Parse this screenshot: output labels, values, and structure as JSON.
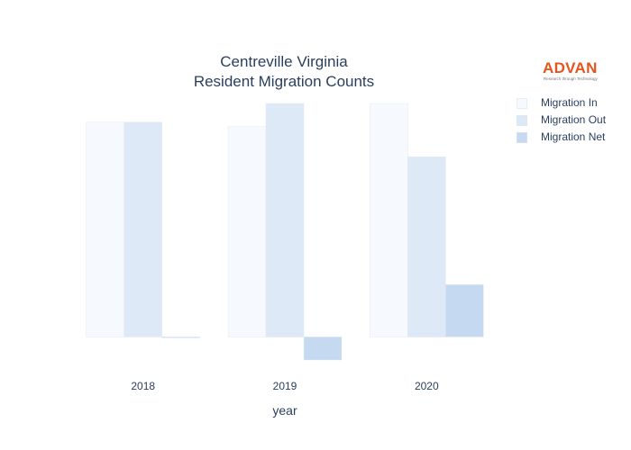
{
  "logo": {
    "name": "ADVAN",
    "tagline": "Research through Technology"
  },
  "chart_data": {
    "type": "bar",
    "title": "Centreville Virginia Resident Migration Counts",
    "title_lines": [
      "Centreville Virginia",
      "Resident Migration Counts"
    ],
    "xlabel": "year",
    "ylabel": "",
    "categories": [
      "2018",
      "2019",
      "2020"
    ],
    "series": [
      {
        "name": "Migration In",
        "color": "#f6f9fe",
        "values": [
          2420,
          2370,
          2630
        ]
      },
      {
        "name": "Migration Out",
        "color": "#dde9f7",
        "values": [
          2420,
          2630,
          2030
        ]
      },
      {
        "name": "Migration Net",
        "color": "#c5daf0",
        "values": [
          0,
          -260,
          590
        ]
      }
    ],
    "ylim": [
      -320,
      2650
    ],
    "grid": false,
    "yticks_shown": false,
    "legend_position": "top-right"
  }
}
